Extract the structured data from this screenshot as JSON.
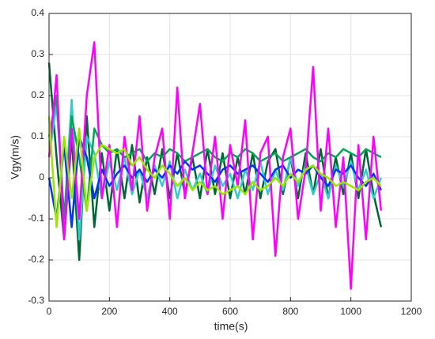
{
  "chart_data": {
    "type": "line",
    "xlabel": "time(s)",
    "ylabel": "Vgy(m/s)",
    "xlim": [
      0,
      1200
    ],
    "xticks": [
      0,
      200,
      400,
      600,
      800,
      1000,
      1200
    ],
    "ylim": [
      -0.3,
      0.4
    ],
    "yticks": [
      -0.3,
      -0.2,
      -0.1,
      0,
      0.1,
      0.2,
      0.3,
      0.4
    ],
    "grid": true,
    "x": [
      0,
      25,
      50,
      75,
      100,
      125,
      150,
      175,
      200,
      225,
      250,
      275,
      300,
      325,
      350,
      375,
      400,
      425,
      450,
      475,
      500,
      525,
      550,
      575,
      600,
      625,
      650,
      675,
      700,
      725,
      750,
      775,
      800,
      825,
      850,
      875,
      900,
      925,
      950,
      975,
      1000,
      1025,
      1050,
      1075,
      1100
    ],
    "series": [
      {
        "color": "#006633",
        "values": [
          0.28,
          0.05,
          -0.15,
          0.1,
          -0.2,
          0.15,
          -0.12,
          0.06,
          -0.08,
          0.07,
          -0.05,
          0.08,
          -0.06,
          0.05,
          -0.04,
          0.07,
          -0.05,
          0.06,
          -0.04,
          0.05,
          -0.05,
          0.07,
          -0.04,
          0.06,
          -0.05,
          0.05,
          -0.04,
          0.06,
          -0.05,
          0.04,
          0.07,
          -0.04,
          0.05,
          -0.05,
          0.06,
          -0.04,
          0.07,
          -0.05,
          0.05,
          -0.04,
          0.06,
          -0.05,
          0.07,
          -0.04,
          -0.12
        ]
      },
      {
        "color": "#33cccc",
        "values": [
          0.05,
          0.18,
          -0.1,
          0.19,
          -0.15,
          0.1,
          0.06,
          -0.05,
          0.04,
          -0.03,
          0.05,
          -0.04,
          0.02,
          -0.05,
          0.03,
          -0.02,
          0.04,
          -0.05,
          0.02,
          -0.03,
          0.01,
          -0.04,
          0.03,
          -0.02,
          0.01,
          -0.05,
          0.02,
          -0.03,
          0.04,
          -0.04,
          0.02,
          -0.03,
          0.05,
          -0.02,
          0.03,
          -0.04,
          0.01,
          -0.05,
          0.03,
          -0.02,
          0.04,
          -0.03,
          0.02,
          -0.05,
          0.0
        ]
      },
      {
        "color": "#00a651",
        "values": [
          0.1,
          0.2,
          -0.1,
          0.15,
          0.05,
          -0.08,
          0.12,
          0.08,
          0.06,
          0.07,
          0.05,
          0.06,
          0.07,
          0.04,
          0.06,
          0.05,
          0.07,
          0.06,
          0.04,
          0.05,
          0.06,
          0.07,
          0.05,
          0.04,
          0.06,
          0.05,
          0.07,
          0.06,
          0.04,
          0.05,
          0.06,
          0.04,
          0.05,
          0.06,
          0.07,
          0.05,
          0.04,
          0.06,
          0.05,
          0.07,
          0.06,
          0.05,
          0.07,
          0.06,
          0.05
        ]
      },
      {
        "color": "#0033ff",
        "values": [
          0.0,
          -0.1,
          0.08,
          -0.12,
          0.1,
          0.05,
          -0.05,
          0.02,
          -0.02,
          0.01,
          0.03,
          0.0,
          0.02,
          -0.01,
          0.02,
          0.0,
          0.03,
          0.01,
          0.04,
          0.02,
          0.03,
          0.01,
          -0.01,
          0.02,
          0.03,
          0.01,
          0.02,
          0.03,
          0.01,
          -0.01,
          0.02,
          0.03,
          0.0,
          0.02,
          0.01,
          0.03,
          0.0,
          -0.02,
          0.02,
          0.01,
          0.03,
          0.0,
          -0.02,
          0.01,
          -0.03
        ]
      },
      {
        "color": "#ff00ff",
        "values": [
          0.05,
          0.25,
          -0.15,
          0.12,
          -0.1,
          0.2,
          0.33,
          -0.05,
          0.08,
          -0.12,
          0.1,
          -0.03,
          0.15,
          -0.08,
          0.05,
          0.12,
          -0.1,
          0.22,
          -0.05,
          0.06,
          0.18,
          -0.04,
          0.1,
          -0.1,
          0.08,
          -0.02,
          0.14,
          -0.15,
          0.06,
          0.1,
          -0.19,
          0.05,
          0.12,
          -0.1,
          0.02,
          0.27,
          -0.08,
          0.12,
          -0.12,
          0.05,
          -0.27,
          0.08,
          -0.15,
          0.1,
          -0.08
        ]
      },
      {
        "color": "#99e600",
        "values": [
          0.15,
          -0.12,
          0.1,
          -0.05,
          0.12,
          -0.08,
          0.05,
          0.08,
          0.07,
          0.06,
          0.07,
          0.03,
          0.05,
          0.02,
          0.0,
          0.03,
          0.01,
          -0.02,
          0.0,
          -0.03,
          -0.01,
          -0.03,
          -0.02,
          -0.04,
          -0.03,
          -0.02,
          -0.04,
          -0.01,
          -0.03,
          -0.02,
          0.0,
          -0.02,
          0.01,
          -0.01,
          0.02,
          0.03,
          0.01,
          0.0,
          -0.02,
          -0.01,
          -0.02,
          -0.03,
          -0.01,
          0.0,
          -0.02
        ]
      }
    ]
  }
}
